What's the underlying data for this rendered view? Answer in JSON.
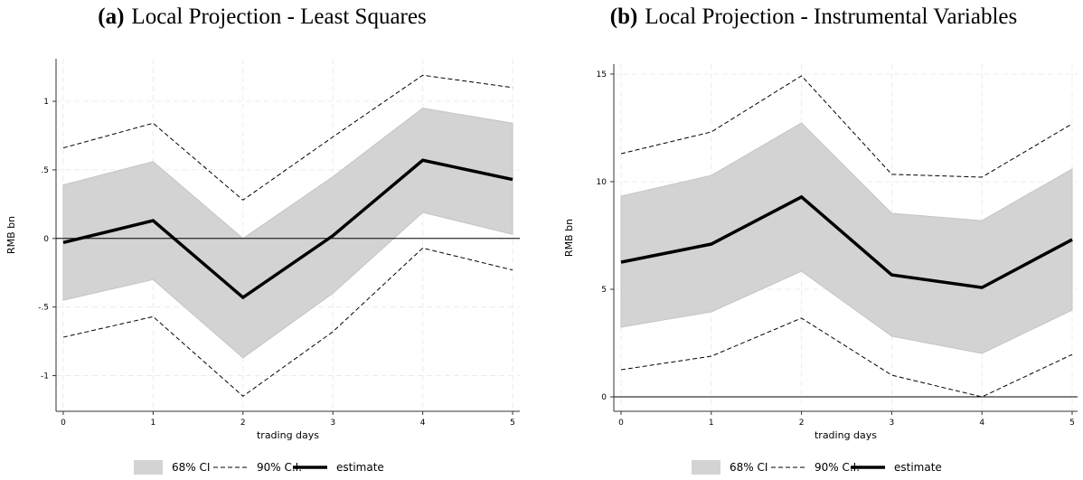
{
  "chart_data": [
    {
      "type": "line",
      "panel_label": "(a)",
      "title": "Local Projection - Least Squares",
      "x_label": "trading days",
      "y_label": "RMB bn",
      "x": [
        0,
        1,
        2,
        3,
        4,
        5
      ],
      "xlim": [
        -0.08,
        5.08
      ],
      "xticks": [
        0,
        1,
        2,
        3,
        4,
        5
      ],
      "ylim": [
        -1.26,
        1.31
      ],
      "yticks": [
        -1,
        {
          "value": -0.5,
          "label": "-.5"
        },
        0,
        {
          "value": 0.5,
          "label": ".5"
        },
        1
      ],
      "grid": true,
      "reference_line": 0,
      "series": [
        {
          "name": "68% CI",
          "style": "band",
          "color": "#d3d3d3",
          "lower": [
            -0.45,
            -0.3,
            -0.87,
            -0.4,
            0.19,
            0.03
          ],
          "upper": [
            0.39,
            0.56,
            0.0,
            0.45,
            0.95,
            0.84
          ]
        },
        {
          "name": "90% C.I.",
          "style": "dashed",
          "color": "#000000",
          "lower": [
            -0.72,
            -0.57,
            -1.15,
            -0.68,
            -0.07,
            -0.23
          ],
          "upper": [
            0.66,
            0.84,
            0.28,
            0.74,
            1.19,
            1.1
          ]
        },
        {
          "name": "estimate",
          "style": "solid",
          "color": "#000000",
          "values": [
            -0.03,
            0.13,
            -0.43,
            0.02,
            0.57,
            0.43
          ]
        }
      ]
    },
    {
      "type": "line",
      "panel_label": "(b)",
      "title": "Local Projection - Instrumental Variables",
      "x_label": "trading days",
      "y_label": "RMB bn",
      "x": [
        0,
        1,
        2,
        3,
        4,
        5
      ],
      "xlim": [
        -0.08,
        5.06
      ],
      "xticks": [
        0,
        1,
        2,
        3,
        4,
        5
      ],
      "ylim": [
        -0.67,
        15.46
      ],
      "yticks": [
        0,
        5,
        10,
        15
      ],
      "grid": true,
      "reference_line": 0,
      "series": [
        {
          "name": "68% CI",
          "style": "band",
          "color": "#d3d3d3",
          "lower": [
            3.24,
            3.95,
            5.84,
            2.82,
            2.02,
            4.03
          ],
          "upper": [
            9.33,
            10.29,
            12.73,
            8.53,
            8.19,
            10.59
          ]
        },
        {
          "name": "90% C.I.",
          "style": "dashed",
          "color": "#000000",
          "lower": [
            1.26,
            1.89,
            3.66,
            1.01,
            0.0,
            1.97
          ],
          "upper": [
            11.3,
            12.31,
            14.92,
            10.34,
            10.21,
            12.69
          ]
        },
        {
          "name": "estimate",
          "style": "solid",
          "color": "#000000",
          "values": [
            6.26,
            7.1,
            9.29,
            5.67,
            5.08,
            7.31
          ]
        }
      ]
    }
  ]
}
